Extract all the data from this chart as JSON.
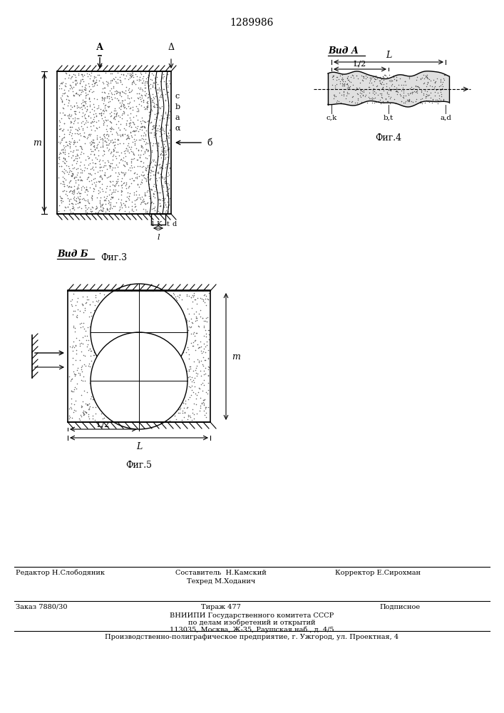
{
  "patent_number": "1289986",
  "fig3_label": "Фиг.3",
  "fig4_label": "Фиг.4",
  "fig5_label": "Фиг.5",
  "vid_a_label": "Вид А",
  "vid_b_label": "Вид Б",
  "footer_ed": "Редактор Н.Слободяник",
  "footer_sost": "Составитель  Н.Камский",
  "footer_tech": "Техред М.Ходанич",
  "footer_corr": "Корректор Е.Сирохман",
  "footer_zakaz": "Заказ 7880/30",
  "footer_tirazh": "Тираж 477",
  "footer_podp": "Подписное",
  "footer_vniip": "ВНИИПИ Государственного комитета СССР",
  "footer_po": "по делам изобретений и открытий",
  "footer_addr": "113035, Москва, Ж-35, Раушская наб., д. 4/5",
  "footer_prod": "Производственно-полиграфическое предприятие, г. Ужгород, ул. Проектная, 4",
  "bg_color": "#ffffff",
  "line_color": "#000000"
}
